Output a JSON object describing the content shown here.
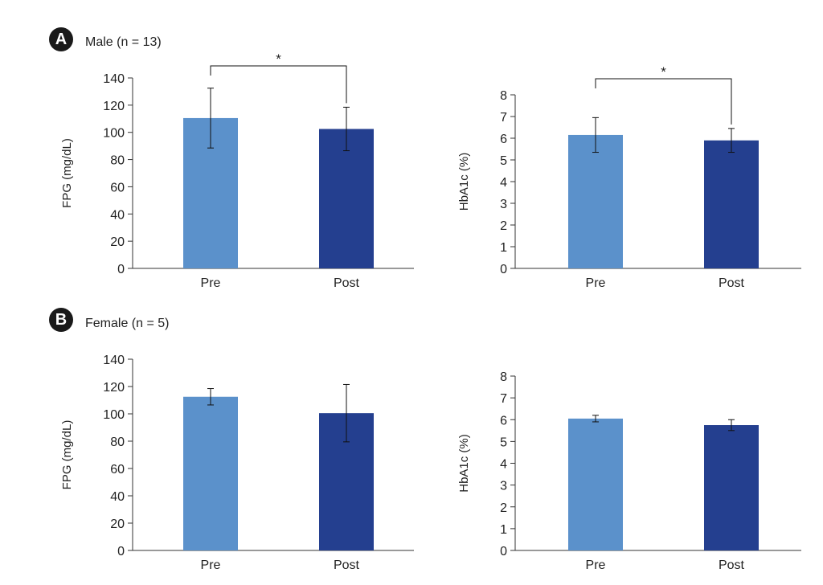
{
  "panels": [
    {
      "badge": "A",
      "title": "Male (n = 13)"
    },
    {
      "badge": "B",
      "title": "Female (n = 5)"
    }
  ],
  "colors": {
    "pre": "#5b91cb",
    "post": "#243f8f",
    "axis": "#333333"
  },
  "chart_data": [
    {
      "type": "bar",
      "panel": "A",
      "categories": [
        "Pre",
        "Post"
      ],
      "values": [
        110.5,
        102.5
      ],
      "errors": [
        22,
        16
      ],
      "ylabel": "FPG (mg/dL)",
      "ylim": [
        0,
        140
      ],
      "yticks": [
        0,
        20,
        40,
        60,
        80,
        100,
        120,
        140
      ],
      "significance": {
        "from": 0,
        "to": 1,
        "label": "*"
      }
    },
    {
      "type": "bar",
      "panel": "A",
      "categories": [
        "Pre",
        "Post"
      ],
      "values": [
        6.15,
        5.9
      ],
      "errors": [
        0.8,
        0.55
      ],
      "ylabel": "HbA1c (%)",
      "ylim": [
        0,
        8
      ],
      "yticks": [
        0,
        1,
        2,
        3,
        4,
        5,
        6,
        7,
        8
      ],
      "significance": {
        "from": 0,
        "to": 1,
        "label": "*"
      }
    },
    {
      "type": "bar",
      "panel": "B",
      "categories": [
        "Pre",
        "Post"
      ],
      "values": [
        112.5,
        100.5
      ],
      "errors": [
        6,
        21
      ],
      "ylabel": "FPG (mg/dL)",
      "ylim": [
        0,
        140
      ],
      "yticks": [
        0,
        20,
        40,
        60,
        80,
        100,
        120,
        140
      ]
    },
    {
      "type": "bar",
      "panel": "B",
      "categories": [
        "Pre",
        "Post"
      ],
      "values": [
        6.05,
        5.75
      ],
      "errors": [
        0.15,
        0.25
      ],
      "ylabel": "HbA1c (%)",
      "ylim": [
        0,
        8
      ],
      "yticks": [
        0,
        1,
        2,
        3,
        4,
        5,
        6,
        7,
        8
      ]
    }
  ]
}
